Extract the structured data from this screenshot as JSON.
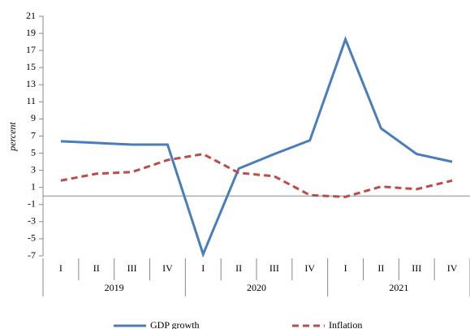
{
  "chart_data": {
    "type": "line",
    "y_label": "percent",
    "categories": [
      "I",
      "II",
      "III",
      "IV",
      "I",
      "II",
      "III",
      "IV",
      "I",
      "II",
      "III",
      "IV"
    ],
    "years": [
      "2019",
      "2020",
      "2021"
    ],
    "series": [
      {
        "name": "GDP growth",
        "color": "#4a7ebb",
        "dash": false,
        "values": [
          6.4,
          6.2,
          6.0,
          6.0,
          -6.8,
          3.2,
          4.9,
          6.5,
          18.3,
          7.9,
          4.9,
          4.0
        ]
      },
      {
        "name": "Inflation",
        "color": "#be4b48",
        "dash": true,
        "values": [
          1.8,
          2.6,
          2.8,
          4.2,
          4.9,
          2.7,
          2.3,
          0.1,
          -0.1,
          1.1,
          0.8,
          1.8
        ]
      }
    ],
    "ylim": [
      -7,
      21
    ],
    "yticks": [
      -7,
      -5,
      -3,
      -1,
      1,
      3,
      5,
      7,
      9,
      11,
      13,
      15,
      17,
      19,
      21
    ],
    "legend": "bottom"
  }
}
